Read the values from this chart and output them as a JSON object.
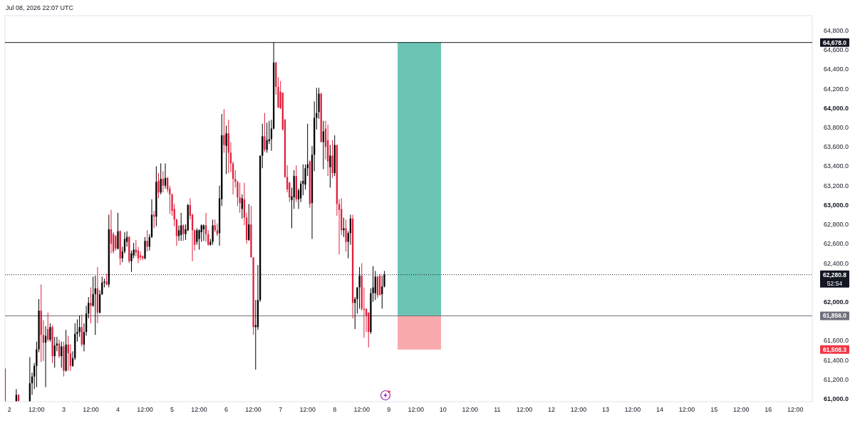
{
  "chart_data": {
    "type": "candlestick",
    "annotations": [
      "Jul 08, 2026 22:07 UTC",
      "52:54",
      "61,508.3"
    ],
    "x": [
      "2026-07-01T22:00",
      "2026-07-02T03:00",
      "2026-07-02T04:00",
      "2026-07-02T09:00",
      "2026-07-02T10:00",
      "2026-07-02T11:00",
      "2026-07-02T12:00",
      "2026-07-02T13:00",
      "2026-07-02T14:00",
      "2026-07-02T15:00",
      "2026-07-02T16:00",
      "2026-07-02T17:00",
      "2026-07-02T18:00",
      "2026-07-02T19:00",
      "2026-07-02T20:00",
      "2026-07-02T21:00",
      "2026-07-02T22:00",
      "2026-07-02T23:00",
      "2026-07-03T00:00",
      "2026-07-03T01:00",
      "2026-07-03T02:00",
      "2026-07-03T03:00",
      "2026-07-03T04:00",
      "2026-07-03T05:00",
      "2026-07-03T06:00",
      "2026-07-03T07:00",
      "2026-07-03T08:00",
      "2026-07-03T09:00",
      "2026-07-03T10:00",
      "2026-07-03T11:00",
      "2026-07-03T12:00",
      "2026-07-03T13:00",
      "2026-07-03T14:00",
      "2026-07-03T15:00",
      "2026-07-03T16:00",
      "2026-07-03T17:00",
      "2026-07-03T18:00",
      "2026-07-03T19:00",
      "2026-07-03T20:00",
      "2026-07-03T21:00",
      "2026-07-03T22:00",
      "2026-07-03T23:00",
      "2026-07-04T00:00",
      "2026-07-04T01:00",
      "2026-07-04T02:00",
      "2026-07-04T03:00",
      "2026-07-04T04:00",
      "2026-07-04T05:00",
      "2026-07-04T06:00",
      "2026-07-04T07:00",
      "2026-07-04T08:00",
      "2026-07-04T09:00",
      "2026-07-04T10:00",
      "2026-07-04T11:00",
      "2026-07-04T12:00",
      "2026-07-04T13:00",
      "2026-07-04T14:00",
      "2026-07-04T15:00",
      "2026-07-04T16:00",
      "2026-07-04T17:00",
      "2026-07-04T18:00",
      "2026-07-04T19:00",
      "2026-07-04T20:00",
      "2026-07-04T21:00",
      "2026-07-04T22:00",
      "2026-07-04T23:00",
      "2026-07-05T00:00",
      "2026-07-05T01:00",
      "2026-07-05T02:00",
      "2026-07-05T03:00",
      "2026-07-05T04:00",
      "2026-07-05T05:00",
      "2026-07-05T06:00",
      "2026-07-05T07:00",
      "2026-07-05T08:00",
      "2026-07-05T09:00",
      "2026-07-05T10:00",
      "2026-07-05T11:00",
      "2026-07-05T12:00",
      "2026-07-05T13:00",
      "2026-07-05T14:00",
      "2026-07-05T15:00",
      "2026-07-05T16:00",
      "2026-07-05T17:00",
      "2026-07-05T18:00",
      "2026-07-05T19:00",
      "2026-07-05T20:00",
      "2026-07-05T21:00",
      "2026-07-05T22:00",
      "2026-07-05T23:00",
      "2026-07-06T00:00",
      "2026-07-06T01:00",
      "2026-07-06T02:00",
      "2026-07-06T03:00",
      "2026-07-06T04:00",
      "2026-07-06T05:00",
      "2026-07-06T06:00",
      "2026-07-06T07:00",
      "2026-07-06T08:00",
      "2026-07-06T09:00",
      "2026-07-06T10:00",
      "2026-07-06T11:00",
      "2026-07-06T12:00",
      "2026-07-06T13:00",
      "2026-07-06T14:00",
      "2026-07-06T15:00",
      "2026-07-06T16:00",
      "2026-07-06T17:00",
      "2026-07-06T18:00",
      "2026-07-06T19:00",
      "2026-07-06T20:00",
      "2026-07-06T21:00",
      "2026-07-06T22:00",
      "2026-07-06T23:00",
      "2026-07-07T00:00",
      "2026-07-07T01:00",
      "2026-07-07T02:00",
      "2026-07-07T03:00",
      "2026-07-07T04:00",
      "2026-07-07T05:00",
      "2026-07-07T06:00",
      "2026-07-07T07:00",
      "2026-07-07T08:00",
      "2026-07-07T09:00",
      "2026-07-07T10:00",
      "2026-07-07T11:00",
      "2026-07-07T12:00",
      "2026-07-07T13:00",
      "2026-07-07T14:00",
      "2026-07-07T15:00",
      "2026-07-07T16:00",
      "2026-07-07T17:00",
      "2026-07-07T18:00",
      "2026-07-07T19:00",
      "2026-07-07T20:00",
      "2026-07-07T21:00",
      "2026-07-07T22:00",
      "2026-07-07T23:00",
      "2026-07-08T00:00",
      "2026-07-08T01:00",
      "2026-07-08T02:00",
      "2026-07-08T03:00",
      "2026-07-08T04:00",
      "2026-07-08T05:00",
      "2026-07-08T06:00",
      "2026-07-08T07:00",
      "2026-07-08T08:00",
      "2026-07-08T09:00",
      "2026-07-08T10:00",
      "2026-07-08T11:00",
      "2026-07-08T12:00",
      "2026-07-08T13:00",
      "2026-07-08T14:00",
      "2026-07-08T15:00",
      "2026-07-08T16:00",
      "2026-07-08T17:00",
      "2026-07-08T18:00",
      "2026-07-08T19:00",
      "2026-07-08T20:00",
      "2026-07-08T21:00",
      "2026-07-08T22:00"
    ],
    "ohlc": [
      [
        61310,
        61320,
        60975,
        60975
      ],
      [
        60975,
        61100,
        60975,
        61040
      ],
      [
        61040,
        61050,
        60975,
        60975
      ],
      [
        60975,
        61430,
        60975,
        61160
      ],
      [
        61160,
        61270,
        61040,
        61230
      ],
      [
        61230,
        61370,
        61100,
        61340
      ],
      [
        61340,
        61590,
        61120,
        61510
      ],
      [
        61510,
        62030,
        61480,
        61910
      ],
      [
        61910,
        62180,
        61380,
        61660
      ],
      [
        61660,
        61810,
        61390,
        61580
      ],
      [
        61580,
        61750,
        61120,
        61650
      ],
      [
        61720,
        61890,
        61590,
        61610
      ],
      [
        61610,
        61780,
        61590,
        61740
      ],
      [
        61740,
        61760,
        61370,
        61440
      ],
      [
        61440,
        61640,
        61320,
        61550
      ],
      [
        61550,
        61640,
        61490,
        61570
      ],
      [
        61570,
        61610,
        61420,
        61440
      ],
      [
        61440,
        61590,
        61320,
        61540
      ],
      [
        61540,
        61590,
        61230,
        61290
      ],
      [
        61290,
        61710,
        61280,
        61560
      ],
      [
        61560,
        61650,
        61290,
        61470
      ],
      [
        61470,
        61560,
        61290,
        61340
      ],
      [
        61340,
        61490,
        61330,
        61420
      ],
      [
        61420,
        61780,
        61400,
        61670
      ],
      [
        61670,
        61820,
        61590,
        61690
      ],
      [
        61690,
        61860,
        61640,
        61740
      ],
      [
        61740,
        61870,
        61540,
        61560
      ],
      [
        61560,
        61780,
        61490,
        61690
      ],
      [
        61690,
        61960,
        61650,
        61880
      ],
      [
        61880,
        62050,
        61830,
        61990
      ],
      [
        61990,
        62150,
        61780,
        61960
      ],
      [
        61960,
        62260,
        61950,
        62080
      ],
      [
        62080,
        62270,
        61660,
        62140
      ],
      [
        62140,
        62360,
        61780,
        61890
      ],
      [
        61890,
        62120,
        61880,
        62080
      ],
      [
        62080,
        62260,
        62070,
        62200
      ],
      [
        62200,
        62240,
        62150,
        62210
      ],
      [
        62210,
        62290,
        62170,
        62180
      ],
      [
        62180,
        62900,
        62150,
        62750
      ],
      [
        62750,
        62950,
        62500,
        62600
      ],
      [
        62700,
        62720,
        62500,
        62520
      ],
      [
        62680,
        62690,
        62530,
        62550
      ],
      [
        62550,
        62920,
        62540,
        62730
      ],
      [
        62730,
        62740,
        62380,
        62450
      ],
      [
        62450,
        62570,
        62410,
        62520
      ],
      [
        62520,
        62720,
        62500,
        62650
      ],
      [
        62620,
        62730,
        62570,
        62670
      ],
      [
        62670,
        62680,
        62400,
        62420
      ],
      [
        62420,
        62530,
        62310,
        62500
      ],
      [
        62480,
        62610,
        62450,
        62540
      ],
      [
        62540,
        62640,
        62470,
        62510
      ],
      [
        62530,
        62570,
        62400,
        62450
      ],
      [
        62480,
        62520,
        62430,
        62460
      ],
      [
        62470,
        62480,
        62430,
        62450
      ],
      [
        62450,
        62670,
        62440,
        62630
      ],
      [
        62630,
        62740,
        62520,
        62570
      ],
      [
        62570,
        62700,
        62530,
        62670
      ],
      [
        62670,
        63060,
        62660,
        62900
      ],
      [
        62900,
        62940,
        62760,
        62880
      ],
      [
        62880,
        63400,
        62780,
        63240
      ],
      [
        63250,
        63330,
        63070,
        63130
      ],
      [
        63130,
        63430,
        63110,
        63270
      ],
      [
        63270,
        63350,
        63130,
        63200
      ],
      [
        63200,
        63430,
        63170,
        63280
      ],
      [
        63280,
        63290,
        63130,
        63160
      ],
      [
        63170,
        63200,
        62910,
        63110
      ],
      [
        63110,
        63120,
        62890,
        62940
      ],
      [
        62960,
        63010,
        62780,
        62850
      ],
      [
        62850,
        62860,
        62580,
        62680
      ],
      [
        62680,
        62790,
        62630,
        62740
      ],
      [
        62690,
        62920,
        62630,
        62790
      ],
      [
        62790,
        62800,
        62630,
        62700
      ],
      [
        62700,
        62800,
        62640,
        62750
      ],
      [
        62740,
        63010,
        62730,
        63000
      ],
      [
        63000,
        63070,
        62850,
        62890
      ],
      [
        62900,
        62910,
        62420,
        62740
      ],
      [
        62740,
        62750,
        62530,
        62590
      ],
      [
        62620,
        62760,
        62590,
        62740
      ],
      [
        62650,
        62750,
        62540,
        62740
      ],
      [
        62720,
        62800,
        62620,
        62790
      ],
      [
        62750,
        62800,
        62630,
        62790
      ],
      [
        62790,
        62920,
        62620,
        62700
      ],
      [
        62700,
        62740,
        62580,
        62590
      ],
      [
        62590,
        62650,
        62580,
        62620
      ],
      [
        62620,
        62850,
        62590,
        62790
      ],
      [
        62790,
        62850,
        62720,
        62740
      ],
      [
        62740,
        62810,
        62680,
        62700
      ],
      [
        62710,
        63200,
        62580,
        63070
      ],
      [
        63060,
        63940,
        62990,
        63720
      ],
      [
        63720,
        63990,
        63540,
        63620
      ],
      [
        63610,
        63820,
        63320,
        63740
      ],
      [
        63740,
        63880,
        63330,
        63540
      ],
      [
        63540,
        63650,
        63340,
        63430
      ],
      [
        63430,
        63450,
        63110,
        63270
      ],
      [
        63270,
        63360,
        63180,
        63240
      ],
      [
        63240,
        63250,
        62990,
        63080
      ],
      [
        63080,
        63230,
        62920,
        63020
      ],
      [
        62960,
        63110,
        62860,
        63070
      ],
      [
        63060,
        63230,
        62790,
        62870
      ],
      [
        62870,
        62920,
        62600,
        62640
      ],
      [
        62640,
        63010,
        62630,
        62800
      ],
      [
        62800,
        62990,
        62460,
        62460
      ],
      [
        62460,
        62460,
        61660,
        61740
      ],
      [
        61740,
        62020,
        61300,
        61760
      ],
      [
        61740,
        62380,
        61710,
        62020
      ],
      [
        62020,
        63510,
        62000,
        63510
      ],
      [
        63510,
        63840,
        63380,
        63710
      ],
      [
        63710,
        63950,
        63550,
        63570
      ],
      [
        63570,
        63850,
        63540,
        63670
      ],
      [
        63660,
        63870,
        63630,
        63680
      ],
      [
        63680,
        63880,
        63560,
        63790
      ],
      [
        63790,
        64678,
        63780,
        64470
      ],
      [
        64470,
        64480,
        64140,
        64220
      ],
      [
        64220,
        64320,
        64000,
        64010
      ],
      [
        64170,
        64280,
        63990,
        64000
      ],
      [
        64160,
        64160,
        63770,
        63780
      ],
      [
        63880,
        63890,
        63280,
        63290
      ],
      [
        63290,
        63410,
        63130,
        63160
      ],
      [
        63230,
        63240,
        63030,
        63080
      ],
      [
        63050,
        63180,
        62760,
        63090
      ],
      [
        63080,
        63360,
        62960,
        63300
      ],
      [
        63300,
        63410,
        63030,
        63060
      ],
      [
        63060,
        63170,
        62960,
        63150
      ],
      [
        63070,
        63250,
        63030,
        63220
      ],
      [
        63220,
        63420,
        63100,
        63250
      ],
      [
        63210,
        63420,
        63160,
        63380
      ],
      [
        63380,
        63840,
        63300,
        63420
      ],
      [
        63450,
        63460,
        62970,
        63010
      ],
      [
        63020,
        63610,
        62650,
        63520
      ],
      [
        63520,
        64070,
        63350,
        63900
      ],
      [
        63900,
        64210,
        63780,
        63950
      ],
      [
        63960,
        64210,
        63890,
        64150
      ],
      [
        64150,
        64160,
        63650,
        63650
      ],
      [
        63650,
        63870,
        63370,
        63760
      ],
      [
        63790,
        63870,
        63470,
        63600
      ],
      [
        63670,
        63830,
        63300,
        63450
      ],
      [
        63390,
        63620,
        63180,
        63510
      ],
      [
        63510,
        63670,
        63280,
        63330
      ],
      [
        63330,
        63720,
        63300,
        63620
      ],
      [
        63620,
        63620,
        62890,
        63010
      ],
      [
        63010,
        63060,
        62490,
        62950
      ],
      [
        62960,
        63070,
        62690,
        62740
      ],
      [
        62740,
        62870,
        62670,
        62760
      ],
      [
        62760,
        62850,
        62520,
        62620
      ],
      [
        62620,
        62730,
        62450,
        62710
      ],
      [
        62710,
        62900,
        62590,
        62860
      ],
      [
        62860,
        62900,
        61830,
        61990
      ],
      [
        61990,
        62050,
        61720,
        62030
      ],
      [
        62030,
        62150,
        61880,
        62150
      ],
      [
        62150,
        62360,
        61930,
        62270
      ],
      [
        62270,
        62400,
        61910,
        61930
      ],
      [
        61930,
        62150,
        61630,
        61920
      ],
      [
        61930,
        61930,
        61690,
        61860
      ],
      [
        61890,
        61890,
        61530,
        61690
      ],
      [
        61690,
        62140,
        61670,
        62090
      ],
      [
        62090,
        62370,
        62000,
        62150
      ],
      [
        62090,
        62320,
        62020,
        62260
      ],
      [
        62260,
        62270,
        62040,
        62070
      ],
      [
        62270,
        62290,
        62070,
        62070
      ],
      [
        62080,
        62270,
        61930,
        62160
      ],
      [
        62160,
        62320,
        62150,
        62280.8
      ]
    ],
    "colors": [
      "#e0203c",
      "#000000",
      "#e0203c",
      "#000000",
      "#000000",
      "#000000",
      "#000000",
      "#000000",
      "#e0203c",
      "#e0203c",
      "#000000",
      "#e0203c",
      "#000000",
      "#e0203c",
      "#000000",
      "#000000",
      "#e0203c",
      "#000000",
      "#e0203c",
      "#000000",
      "#e0203c",
      "#e0203c",
      "#000000",
      "#000000",
      "#000000",
      "#000000",
      "#e0203c",
      "#000000",
      "#000000",
      "#000000",
      "#e0203c",
      "#000000",
      "#000000",
      "#e0203c",
      "#000000",
      "#000000",
      "#000000",
      "#e0203c",
      "#000000",
      "#e0203c",
      "#e0203c",
      "#e0203c",
      "#000000",
      "#e0203c",
      "#000000",
      "#000000",
      "#000000",
      "#e0203c",
      "#000000",
      "#000000",
      "#e0203c",
      "#e0203c",
      "#e0203c",
      "#e0203c",
      "#000000",
      "#e0203c",
      "#000000",
      "#000000",
      "#e0203c",
      "#000000",
      "#e0203c",
      "#000000",
      "#e0203c",
      "#000000",
      "#e0203c",
      "#e0203c",
      "#e0203c",
      "#e0203c",
      "#e0203c",
      "#000000",
      "#000000",
      "#e0203c",
      "#000000",
      "#000000",
      "#e0203c",
      "#e0203c",
      "#e0203c",
      "#000000",
      "#000000",
      "#000000",
      "#000000",
      "#e0203c",
      "#e0203c",
      "#000000",
      "#000000",
      "#e0203c",
      "#e0203c",
      "#000000",
      "#000000",
      "#e0203c",
      "#000000",
      "#e0203c",
      "#e0203c",
      "#e0203c",
      "#e0203c",
      "#e0203c",
      "#e0203c",
      "#000000",
      "#e0203c",
      "#e0203c",
      "#000000",
      "#e0203c",
      "#e0203c",
      "#000000",
      "#000000",
      "#000000",
      "#000000",
      "#e0203c",
      "#000000",
      "#000000",
      "#000000",
      "#000000",
      "#e0203c",
      "#e0203c",
      "#e0203c",
      "#e0203c",
      "#e0203c",
      "#e0203c",
      "#e0203c",
      "#000000",
      "#000000",
      "#e0203c",
      "#000000",
      "#000000",
      "#000000",
      "#000000",
      "#000000",
      "#e0203c",
      "#000000",
      "#000000",
      "#000000",
      "#000000",
      "#e0203c",
      "#000000",
      "#e0203c",
      "#e0203c",
      "#000000",
      "#e0203c",
      "#000000",
      "#e0203c",
      "#e0203c",
      "#e0203c",
      "#000000",
      "#e0203c",
      "#000000",
      "#000000",
      "#e0203c",
      "#000000",
      "#000000",
      "#000000",
      "#e0203c",
      "#e0203c",
      "#e0203c",
      "#e0203c",
      "#000000",
      "#000000",
      "#000000",
      "#e0203c",
      "#e0203c",
      "#000000",
      "#000000"
    ],
    "series": [
      {
        "type": "bar",
        "x": [
          "2026-07-09T13:30"
        ],
        "base": [
          61856
        ],
        "values": [
          2822
        ],
        "color": "#6cc5b4"
      },
      {
        "type": "bar",
        "x": [
          "2026-07-09T13:30"
        ],
        "base": [
          61508.3
        ],
        "values": [
          347.7
        ],
        "color": "#f8a9ac"
      }
    ],
    "ref_lines": [
      {
        "axis": "y",
        "value": 64678,
        "label": "64,678.0",
        "color": "#131722"
      },
      {
        "axis": "y",
        "value": 62280.8,
        "label": "62,280.8",
        "color": "#131722",
        "line_style": "dotted"
      },
      {
        "axis": "y",
        "value": 61856,
        "label": "61,856.0",
        "color": "#6f727c"
      }
    ],
    "xlim": [
      "2026-07-01T22:00",
      "2026-07-16T19:30"
    ],
    "xticks": [
      {
        "value": "2026-07-02T00:00",
        "label": "2"
      },
      {
        "value": "2026-07-02T12:00",
        "label": "12:00"
      },
      {
        "value": "2026-07-03T00:00",
        "label": "3"
      },
      {
        "value": "2026-07-03T12:00",
        "label": "12:00"
      },
      {
        "value": "2026-07-04T00:00",
        "label": "4"
      },
      {
        "value": "2026-07-04T12:00",
        "label": "12:00"
      },
      {
        "value": "2026-07-05T00:00",
        "label": "5"
      },
      {
        "value": "2026-07-05T12:00",
        "label": "12:00"
      },
      {
        "value": "2026-07-06T00:00",
        "label": "6"
      },
      {
        "value": "2026-07-06T12:00",
        "label": "12:00"
      },
      {
        "value": "2026-07-07T00:00",
        "label": "7"
      },
      {
        "value": "2026-07-07T12:00",
        "label": "12:00"
      },
      {
        "value": "2026-07-08T00:00",
        "label": "8"
      },
      {
        "value": "2026-07-08T12:00",
        "label": "12:00"
      },
      {
        "value": "2026-07-09T00:00",
        "label": "9"
      },
      {
        "value": "2026-07-09T12:00",
        "label": "12:00"
      },
      {
        "value": "2026-07-10T00:00",
        "label": "10"
      },
      {
        "value": "2026-07-10T12:00",
        "label": "12:00"
      },
      {
        "value": "2026-07-11T00:00",
        "label": "11"
      },
      {
        "value": "2026-07-11T12:00",
        "label": "12:00"
      },
      {
        "value": "2026-07-12T00:00",
        "label": "12"
      },
      {
        "value": "2026-07-12T12:00",
        "label": "12:00"
      },
      {
        "value": "2026-07-13T00:00",
        "label": "13"
      },
      {
        "value": "2026-07-13T12:00",
        "label": "12:00"
      },
      {
        "value": "2026-07-14T00:00",
        "label": "14"
      },
      {
        "value": "2026-07-14T12:00",
        "label": "12:00"
      },
      {
        "value": "2026-07-15T00:00",
        "label": "15"
      },
      {
        "value": "2026-07-15T12:00",
        "label": "12:00"
      },
      {
        "value": "2026-07-16T00:00",
        "label": "16"
      },
      {
        "value": "2026-07-16T12:00",
        "label": "12:00"
      }
    ],
    "ylim": [
      60970,
      64955
    ],
    "yticks": [
      {
        "value": 61000,
        "label": "61,000.0"
      },
      {
        "value": 61200,
        "label": "61,200.0"
      },
      {
        "value": 61400,
        "label": "61,400.0"
      },
      {
        "value": 61600,
        "label": "61,600.0"
      },
      {
        "value": 62000,
        "label": "62,000.0"
      },
      {
        "value": 62400,
        "label": "62,400.0"
      },
      {
        "value": 62600,
        "label": "62,600.0"
      },
      {
        "value": 62800,
        "label": "62,800.0"
      },
      {
        "value": 63000,
        "label": "63,000.0"
      },
      {
        "value": 63200,
        "label": "63,200.0"
      },
      {
        "value": 63400,
        "label": "63,400.0"
      },
      {
        "value": 63600,
        "label": "63,600.0"
      },
      {
        "value": 63800,
        "label": "63,800.0"
      },
      {
        "value": 64000,
        "label": "64,000.0"
      },
      {
        "value": 64200,
        "label": "64,200.0"
      },
      {
        "value": 64400,
        "label": "64,400.0"
      },
      {
        "value": 64600,
        "label": "64,600.0"
      },
      {
        "value": 64800,
        "label": "64,800.0"
      }
    ]
  }
}
